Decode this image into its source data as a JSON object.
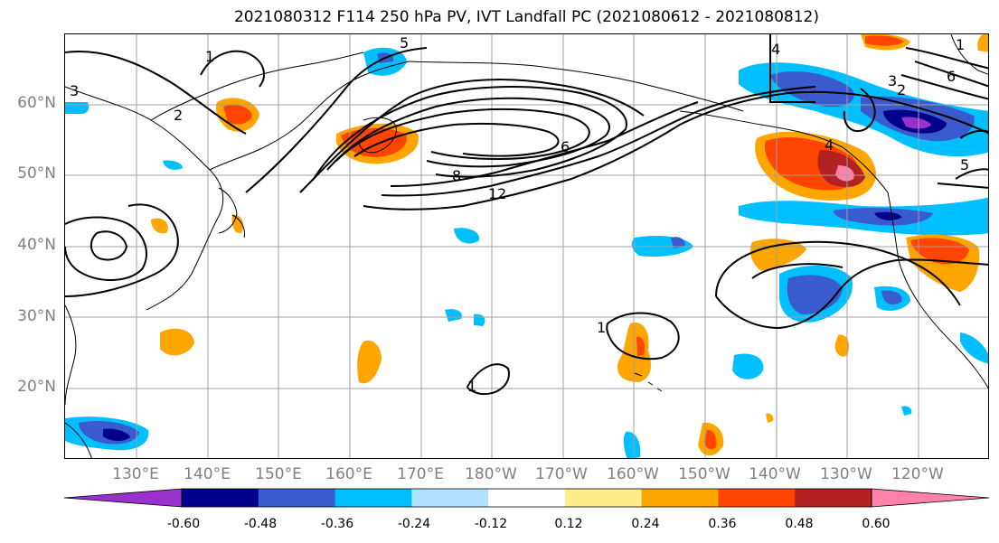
{
  "title": "2021080312 F114 250 hPa PV, IVT Landfall PC (2021080612 - 2021080812)",
  "map": {
    "lat_labels": [
      "60°N",
      "50°N",
      "40°N",
      "30°N",
      "20°N"
    ],
    "lon_labels": [
      "130°E",
      "140°E",
      "150°E",
      "160°E",
      "170°E",
      "180°W",
      "170°W",
      "160°W",
      "150°W",
      "140°W",
      "130°W",
      "120°W"
    ],
    "contour_labels": [
      "1",
      "2",
      "3",
      "5",
      "6",
      "8",
      "1",
      "2",
      "4",
      "2",
      "3",
      "6",
      "1",
      "5",
      "4",
      "1",
      "1"
    ]
  },
  "colorbar": {
    "colors": [
      "#9932cc",
      "#00008b",
      "#3a5bcd",
      "#00bfff",
      "#b0e2ff",
      "#ffffff",
      "#ffec8b",
      "#ffa500",
      "#ff4500",
      "#b22222",
      "#ff82ab"
    ],
    "tick_labels": [
      "-0.60",
      "-0.48",
      "-0.36",
      "-0.24",
      "-0.12",
      "0.12",
      "0.24",
      "0.36",
      "0.48",
      "0.60"
    ]
  }
}
